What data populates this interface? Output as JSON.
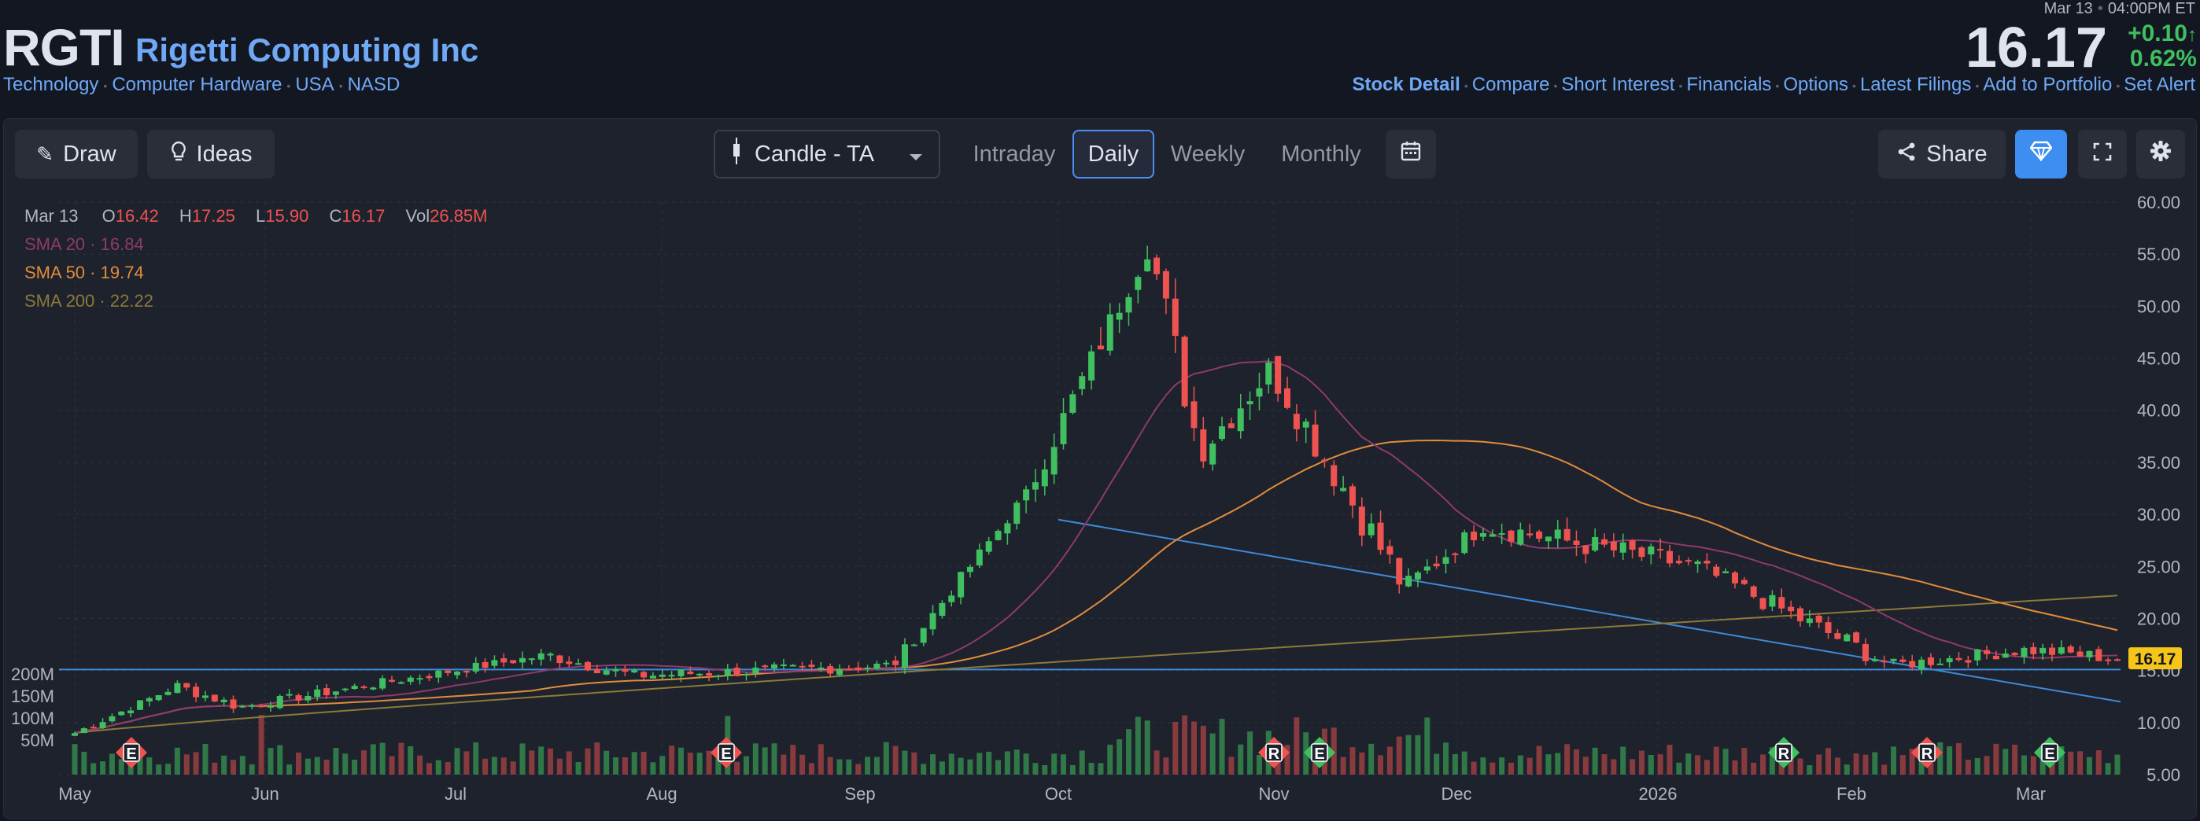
{
  "header": {
    "ticker": "RGTI",
    "company": "Rigetti Computing Inc",
    "tags": [
      "Technology",
      "Computer Hardware",
      "USA",
      "NASD"
    ],
    "date": "Mar 13",
    "time": "04:00PM ET",
    "last": "16.17",
    "change": "+0.10",
    "change_arrow": "↑",
    "change_pct": "0.62%",
    "nav": [
      "Stock Detail",
      "Compare",
      "Short Interest",
      "Financials",
      "Options",
      "Latest Filings",
      "Add to Portfolio",
      "Set Alert"
    ]
  },
  "toolbar": {
    "draw": "Draw",
    "ideas": "Ideas",
    "chart_type": "Candle - TA",
    "timeframes": [
      "Intraday",
      "Daily",
      "Weekly",
      "Monthly"
    ],
    "active_timeframe": "Daily",
    "share": "Share"
  },
  "legend": {
    "date": "Mar 13",
    "o_label": "O",
    "o": "16.42",
    "h_label": "H",
    "h": "17.25",
    "l_label": "L",
    "l": "15.90",
    "c_label": "C",
    "c": "16.17",
    "vol_label": "Vol",
    "vol": "26.85M",
    "sma20_label": "SMA 20",
    "sma20": "16.84",
    "sma50_label": "SMA 50",
    "sma50": "19.74",
    "sma200_label": "SMA 200",
    "sma200": "22.22",
    "sep": "·"
  },
  "chart_data": {
    "type": "candlestick",
    "price_axis": {
      "ticks": [
        "60.00",
        "55.00",
        "50.00",
        "45.00",
        "40.00",
        "35.00",
        "30.00",
        "25.00",
        "20.00",
        "15.00",
        "10.00",
        "5.00"
      ],
      "min": 5,
      "max": 60
    },
    "volume_axis": {
      "ticks": [
        "200M",
        "150M",
        "100M",
        "50M"
      ]
    },
    "x_ticks": [
      "May",
      "Jun",
      "Jul",
      "Aug",
      "Sep",
      "Oct",
      "Nov",
      "Dec",
      "2026",
      "Feb",
      "Mar"
    ],
    "last_price_label": "16.17",
    "key_points": [
      {
        "date": "May",
        "close": 9.0
      },
      {
        "date": "Jun",
        "close": 13.5
      },
      {
        "date": "Jul",
        "close": 11.5
      },
      {
        "date": "Jul",
        "close": 16.5
      },
      {
        "date": "Aug",
        "close": 14.5
      },
      {
        "date": "Sep",
        "close": 15.5
      },
      {
        "date": "Sep",
        "close": 32.0
      },
      {
        "date": "Oct",
        "close": 56.0
      },
      {
        "date": "Oct",
        "close": 36.0
      },
      {
        "date": "Nov",
        "close": 44.0
      },
      {
        "date": "Nov",
        "close": 23.0
      },
      {
        "date": "Dec",
        "close": 29.0
      },
      {
        "date": "2026",
        "close": 25.0
      },
      {
        "date": "Feb",
        "close": 15.5
      },
      {
        "date": "Mar",
        "close": 17.0
      },
      {
        "date": "Mar",
        "close": 16.17
      }
    ],
    "event_markers": [
      {
        "date": "May",
        "label": "E",
        "color": "#ef5350"
      },
      {
        "date": "Aug",
        "label": "E",
        "color": "#ef5350"
      },
      {
        "date": "Nov",
        "label": "R",
        "color": "#ef5350"
      },
      {
        "date": "Nov",
        "label": "E",
        "color": "#3fbf5f"
      },
      {
        "date": "2026",
        "label": "R",
        "color": "#3fbf5f"
      },
      {
        "date": "Feb",
        "label": "R",
        "color": "#ef5350"
      },
      {
        "date": "Mar",
        "label": "E",
        "color": "#3fbf5f"
      }
    ],
    "colors": {
      "up": "#3fbf5f",
      "down": "#ef5350",
      "sma20": "#8e3a6b",
      "sma50": "#e08c3c",
      "sma200": "#8b7a3a",
      "trendline": "#3d8ad8",
      "last_badge": "#f5c518"
    }
  }
}
